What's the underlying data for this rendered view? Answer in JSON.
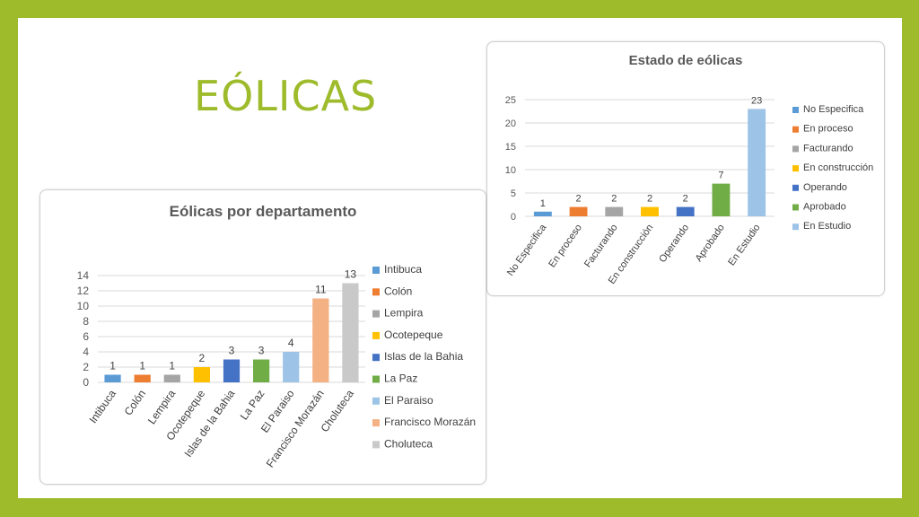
{
  "slide": {
    "title": "EÓLICAS"
  },
  "colors": {
    "background_frame": "#9dbb2b",
    "title_color": "#9dbb2b"
  },
  "chart_data": [
    {
      "id": "departamento",
      "type": "bar",
      "title": "Eólicas por departamento",
      "categories": [
        "Intibuca",
        "Colón",
        "Lempira",
        "Ocotepeque",
        "Islas de la Bahia",
        "La Paz",
        "El Paraiso",
        "Francisco Morazán",
        "Choluteca"
      ],
      "values": [
        1,
        1,
        1,
        2,
        3,
        3,
        4,
        11,
        13
      ],
      "colors": [
        "#5b9bd5",
        "#ed7d31",
        "#a5a5a5",
        "#ffc000",
        "#4472c4",
        "#70ad47",
        "#9dc3e6",
        "#f4b183",
        "#c9c9c9"
      ],
      "ylim": [
        0,
        14
      ],
      "yticks": [
        0,
        2,
        4,
        6,
        8,
        10,
        12,
        14
      ],
      "legend": "right",
      "grid": true
    },
    {
      "id": "estado",
      "type": "bar",
      "title": "Estado de eólicas",
      "categories": [
        "No Especifica",
        "En proceso",
        "Facturando",
        "En construcción",
        "Operando",
        "Aprobado",
        "En Estudio"
      ],
      "values": [
        1,
        2,
        2,
        2,
        2,
        7,
        23
      ],
      "colors": [
        "#5b9bd5",
        "#ed7d31",
        "#a5a5a5",
        "#ffc000",
        "#4472c4",
        "#70ad47",
        "#9dc3e6"
      ],
      "ylim": [
        0,
        25
      ],
      "yticks": [
        0,
        5,
        10,
        15,
        20,
        25
      ],
      "legend": "right",
      "grid": true
    }
  ]
}
